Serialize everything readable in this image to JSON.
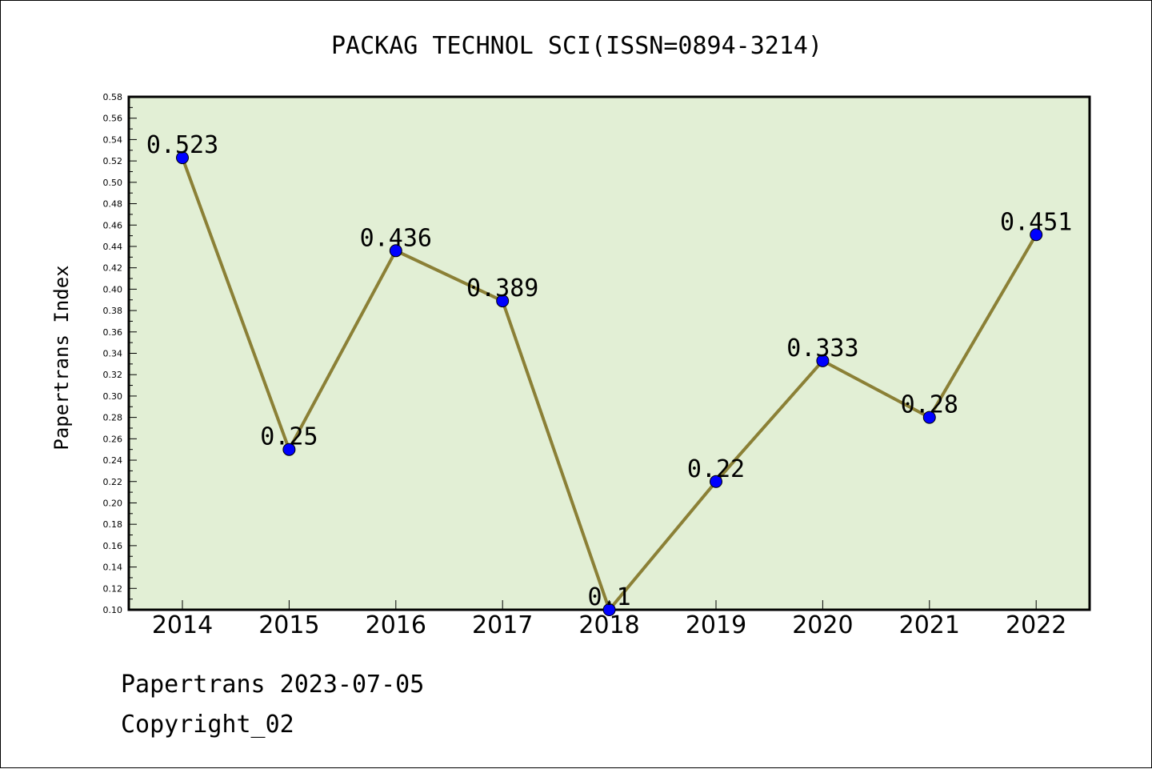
{
  "chart_data": {
    "type": "line",
    "title": "PACKAG TECHNOL SCI(ISSN=0894-3214)",
    "xlabel": "",
    "ylabel": "Papertrans Index",
    "categories": [
      "2014",
      "2015",
      "2016",
      "2017",
      "2018",
      "2019",
      "2020",
      "2021",
      "2022"
    ],
    "values": [
      0.523,
      0.25,
      0.436,
      0.389,
      0.1,
      0.22,
      0.333,
      0.28,
      0.451
    ],
    "data_labels": [
      "0.523",
      "0.25",
      "0.436",
      "0.389",
      "0.1",
      "0.22",
      "0.333",
      "0.28",
      "0.451"
    ],
    "ylim": [
      0.1,
      0.58
    ],
    "yticks": [
      "0.10",
      "0.12",
      "0.14",
      "0.16",
      "0.18",
      "0.20",
      "0.22",
      "0.24",
      "0.26",
      "0.28",
      "0.30",
      "0.32",
      "0.34",
      "0.36",
      "0.38",
      "0.40",
      "0.42",
      "0.44",
      "0.46",
      "0.48",
      "0.50",
      "0.52",
      "0.54",
      "0.56",
      "0.58"
    ],
    "grid": false,
    "colors": {
      "plot_background": "#e2efd5",
      "line": "#8b8036",
      "marker": "#0000ff"
    }
  },
  "footer": {
    "line1": "Papertrans 2023-07-05",
    "line2": "Copyright_02"
  }
}
